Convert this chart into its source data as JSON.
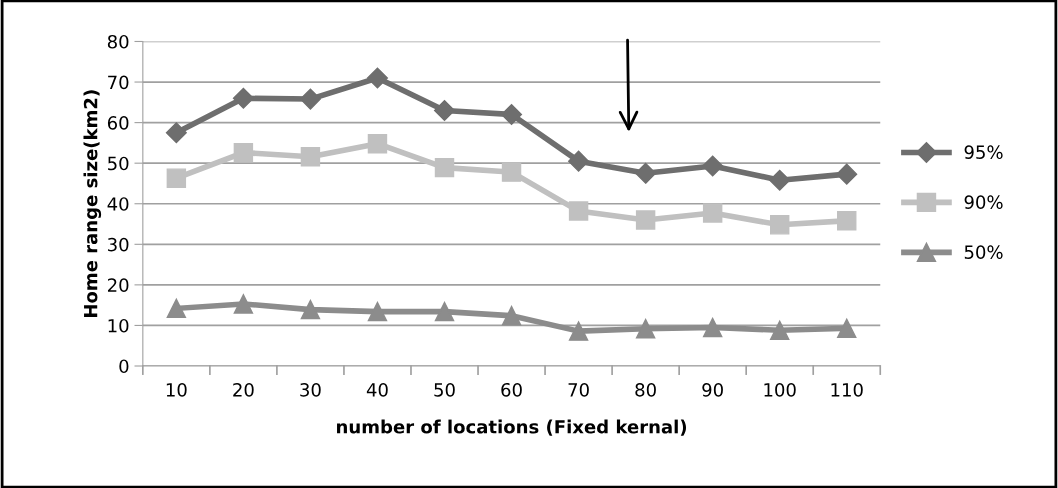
{
  "chart_data": {
    "type": "line",
    "xlabel": "number of locations (Fixed kernal)",
    "ylabel": "Home range size(km2)",
    "categories": [
      "10",
      "20",
      "30",
      "40",
      "50",
      "60",
      "70",
      "80",
      "90",
      "100",
      "110"
    ],
    "series": [
      {
        "name": "95%",
        "color": "#6e6e6e",
        "marker": "diamond",
        "values": [
          57.5,
          66,
          65.8,
          71,
          63,
          62,
          50.5,
          47.5,
          49.3,
          45.8,
          47.3
        ]
      },
      {
        "name": "90%",
        "color": "#c0c0c0",
        "marker": "square",
        "values": [
          46.3,
          52.6,
          51.6,
          54.8,
          48.9,
          47.8,
          38.2,
          36,
          37.7,
          34.8,
          35.8
        ]
      },
      {
        "name": "50%",
        "color": "#8c8c8c",
        "marker": "triangle",
        "values": [
          14.2,
          15.3,
          13.9,
          13.4,
          13.4,
          12.4,
          8.6,
          9.2,
          9.5,
          8.8,
          9.3
        ]
      }
    ],
    "ylim": [
      0,
      80
    ],
    "yticks": [
      0,
      10,
      20,
      30,
      40,
      50,
      60,
      70,
      80
    ],
    "grid": "y",
    "legend": "right",
    "line_style": "solid"
  }
}
